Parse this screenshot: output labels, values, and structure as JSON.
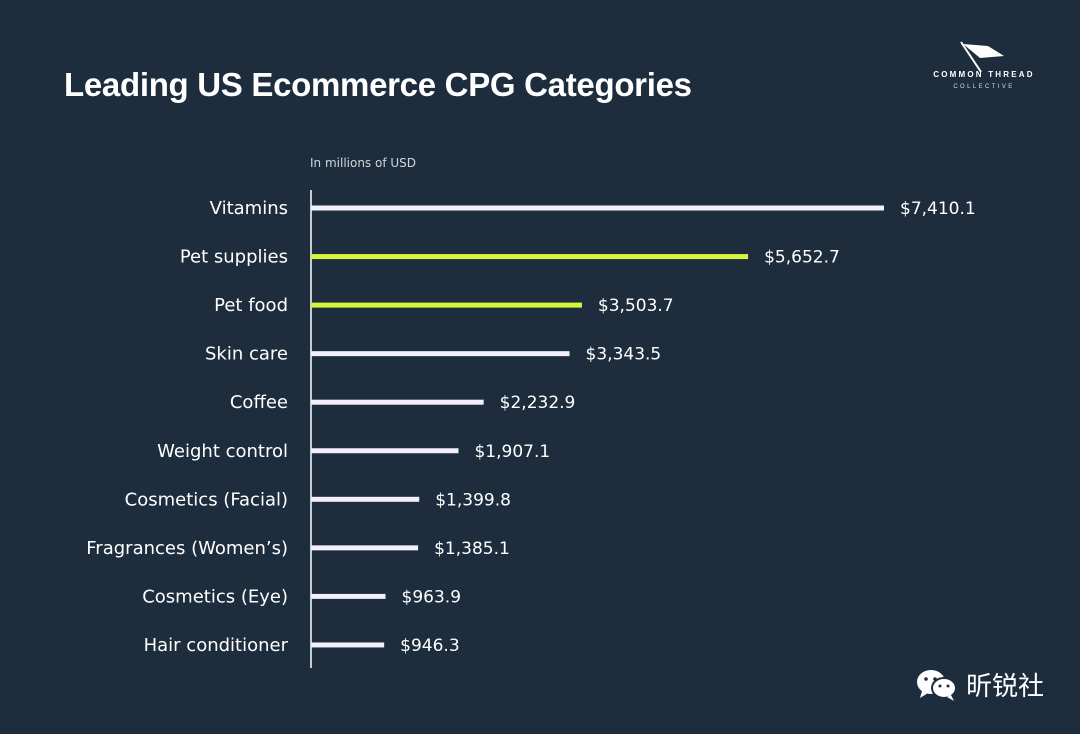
{
  "title": "Leading US Ecommerce CPG Categories",
  "logo": {
    "line1": "COMMON THREAD",
    "line2": "COLLECTIVE"
  },
  "watermark": {
    "text": "昕锐社",
    "icon": "wechat-icon"
  },
  "colors": {
    "background": "#1e2d3d",
    "bar_default": "#f2f0fa",
    "bar_highlight": "#d6f53c",
    "text": "#ffffff"
  },
  "chart_data": {
    "type": "bar",
    "orientation": "horizontal",
    "unit_note": "In millions of USD",
    "categories": [
      "Vitamins",
      "Pet supplies",
      "Pet food",
      "Skin care",
      "Coffee",
      "Weight control",
      "Cosmetics (Facial)",
      "Fragrances (Women’s)",
      "Cosmetics (Eye)",
      "Hair conditioner"
    ],
    "values": [
      7410.1,
      5652.7,
      3503.7,
      3343.5,
      2232.9,
      1907.1,
      1399.8,
      1385.1,
      963.9,
      946.3
    ],
    "value_labels": [
      "$7,410.1",
      "$5,652.7",
      "$3,503.7",
      "$3,343.5",
      "$2,232.9",
      "$1,907.1",
      "$1,399.8",
      "$1,385.1",
      "$963.9",
      "$946.3"
    ],
    "highlighted": [
      false,
      true,
      true,
      false,
      false,
      false,
      false,
      false,
      false,
      false
    ],
    "xlim": [
      0,
      7410.1
    ],
    "grid": false,
    "legend": "none"
  }
}
